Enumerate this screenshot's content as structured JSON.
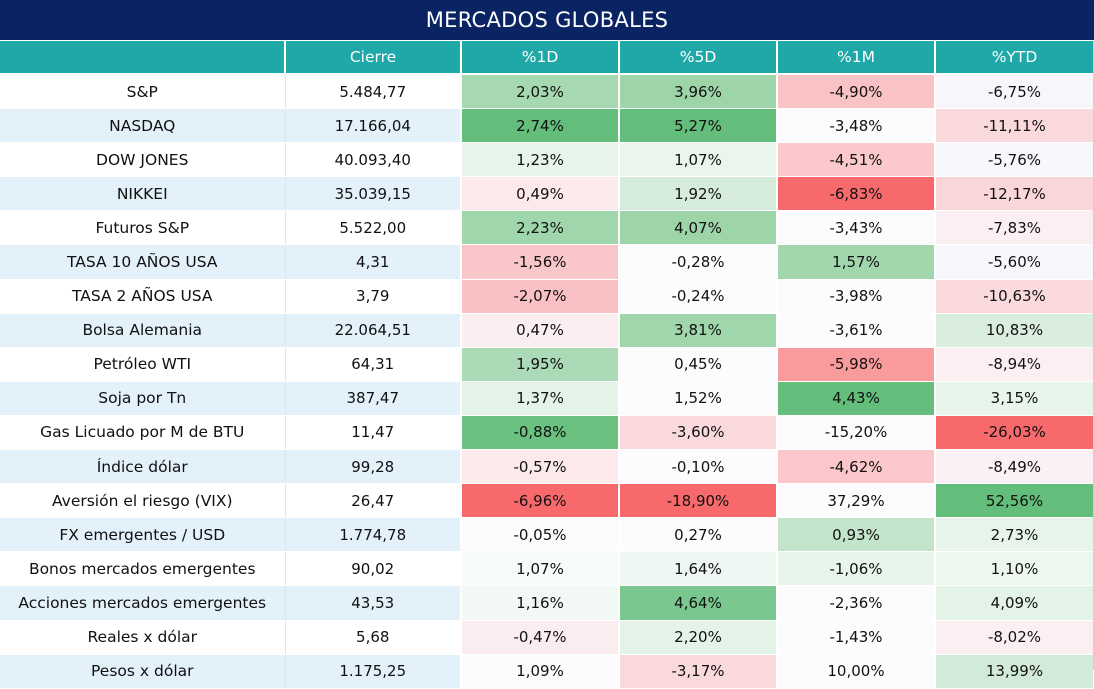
{
  "title": "MERCADOS GLOBALES",
  "headers": [
    "",
    "Cierre",
    "%1D",
    "%5D",
    "%1M",
    "%YTD"
  ],
  "colors": {
    "title_bg": "#0a2463",
    "header_bg": "#1fa8a8",
    "row_band": "#e3f1fb"
  },
  "rows": [
    {
      "name": "S&P",
      "close": "5.484,77",
      "d1": "2,03%",
      "d5": "3,96%",
      "m1": "-4,90%",
      "ytd": "-6,75%"
    },
    {
      "name": "NASDAQ",
      "close": "17.166,04",
      "d1": "2,74%",
      "d5": "5,27%",
      "m1": "-3,48%",
      "ytd": "-11,11%"
    },
    {
      "name": "DOW JONES",
      "close": "40.093,40",
      "d1": "1,23%",
      "d5": "1,07%",
      "m1": "-4,51%",
      "ytd": "-5,76%"
    },
    {
      "name": "NIKKEI",
      "close": "35.039,15",
      "d1": "0,49%",
      "d5": "1,92%",
      "m1": "-6,83%",
      "ytd": "-12,17%"
    },
    {
      "name": "Futuros S&P",
      "close": "5.522,00",
      "d1": "2,23%",
      "d5": "4,07%",
      "m1": "-3,43%",
      "ytd": "-7,83%"
    },
    {
      "name": "TASA 10 AÑOS USA",
      "close": "4,31",
      "d1": "-1,56%",
      "d5": "-0,28%",
      "m1": "1,57%",
      "ytd": "-5,60%"
    },
    {
      "name": "TASA 2 AÑOS USA",
      "close": "3,79",
      "d1": "-2,07%",
      "d5": "-0,24%",
      "m1": "-3,98%",
      "ytd": "-10,63%"
    },
    {
      "name": "Bolsa Alemania",
      "close": "22.064,51",
      "d1": "0,47%",
      "d5": "3,81%",
      "m1": "-3,61%",
      "ytd": "10,83%"
    },
    {
      "name": "Petróleo WTI",
      "close": "64,31",
      "d1": "1,95%",
      "d5": "0,45%",
      "m1": "-5,98%",
      "ytd": "-8,94%"
    },
    {
      "name": "Soja por Tn",
      "close": "387,47",
      "d1": "1,37%",
      "d5": "1,52%",
      "m1": "4,43%",
      "ytd": "3,15%"
    },
    {
      "name": "Gas Licuado por M de BTU",
      "close": "11,47",
      "d1": "-0,88%",
      "d5": "-3,60%",
      "m1": "-15,20%",
      "ytd": "-26,03%"
    },
    {
      "name": "Índice dólar",
      "close": "99,28",
      "d1": "-0,57%",
      "d5": "-0,10%",
      "m1": "-4,62%",
      "ytd": "-8,49%"
    },
    {
      "name": "Aversión el riesgo (VIX)",
      "close": "26,47",
      "d1": "-6,96%",
      "d5": "-18,90%",
      "m1": "37,29%",
      "ytd": "52,56%"
    },
    {
      "name": "FX emergentes / USD",
      "close": "1.774,78",
      "d1": "-0,05%",
      "d5": "0,27%",
      "m1": "0,93%",
      "ytd": "2,73%"
    },
    {
      "name": "Bonos mercados emergentes",
      "close": "90,02",
      "d1": "1,07%",
      "d5": "1,64%",
      "m1": "-1,06%",
      "ytd": "1,10%"
    },
    {
      "name": "Acciones mercados emergentes",
      "close": "43,53",
      "d1": "1,16%",
      "d5": "4,64%",
      "m1": "-2,36%",
      "ytd": "4,09%"
    },
    {
      "name": "Reales x dólar",
      "close": "5,68",
      "d1": "-0,47%",
      "d5": "2,20%",
      "m1": "-1,43%",
      "ytd": "-8,02%"
    },
    {
      "name": "Pesos x dólar",
      "close": "1.175,25",
      "d1": "1,09%",
      "d5": "-3,17%",
      "m1": "10,00%",
      "ytd": "13,99%"
    }
  ],
  "cell_colors": [
    [
      "#a6d9b2",
      "#9dd5a9",
      "#f9c3c6",
      "#f8f6fb"
    ],
    [
      "#63be7b",
      "#63be7b",
      "#fcfcff",
      "#fad9dc"
    ],
    [
      "#e7f4ea",
      "#eaf5ed",
      "#fbc9cc",
      "#f8f7fb"
    ],
    [
      "#fbe9ec",
      "#d6ecdb",
      "#f8696b",
      "#fad6d9"
    ],
    [
      "#a0d6ac",
      "#9dd5a9",
      "#fcfcff",
      "#fbeff2"
    ],
    [
      "#f9c7ca",
      "#fcfcff",
      "#a2d7ae",
      "#f8f7fb"
    ],
    [
      "#f9c1c4",
      "#fcfcff",
      "#fcfcff",
      "#fadadd"
    ],
    [
      "#fbeef1",
      "#a0d6ac",
      "#fcfcff",
      "#d9eedf"
    ],
    [
      "#aadab6",
      "#fcfcff",
      "#f99b9d",
      "#fbeff2"
    ],
    [
      "#e3f3e7",
      "#fcfcff",
      "#63be7b",
      "#e8f5eb"
    ],
    [
      "#6ac180",
      "#fad9dc",
      "#fcfcff",
      "#f8696b"
    ],
    [
      "#fbe9ec",
      "#fcfcff",
      "#fbc7ca",
      "#fbf0f3"
    ],
    [
      "#f8696b",
      "#f8696b",
      "#fcfcff",
      "#63be7b"
    ],
    [
      "#fcfcff",
      "#fcfcff",
      "#c3e4cb",
      "#e6f4e9"
    ],
    [
      "#f8fbfb",
      "#eef7f1",
      "#e8f5eb",
      "#edf7f0"
    ],
    [
      "#f2f9f4",
      "#7ac78f",
      "#fcfcff",
      "#e3f3e7"
    ],
    [
      "#fbecef",
      "#e3f3e7",
      "#fcfcff",
      "#fbeff2"
    ],
    [
      "#fcfcff",
      "#fad9dc",
      "#fcfcff",
      "#d2ebd8"
    ]
  ]
}
